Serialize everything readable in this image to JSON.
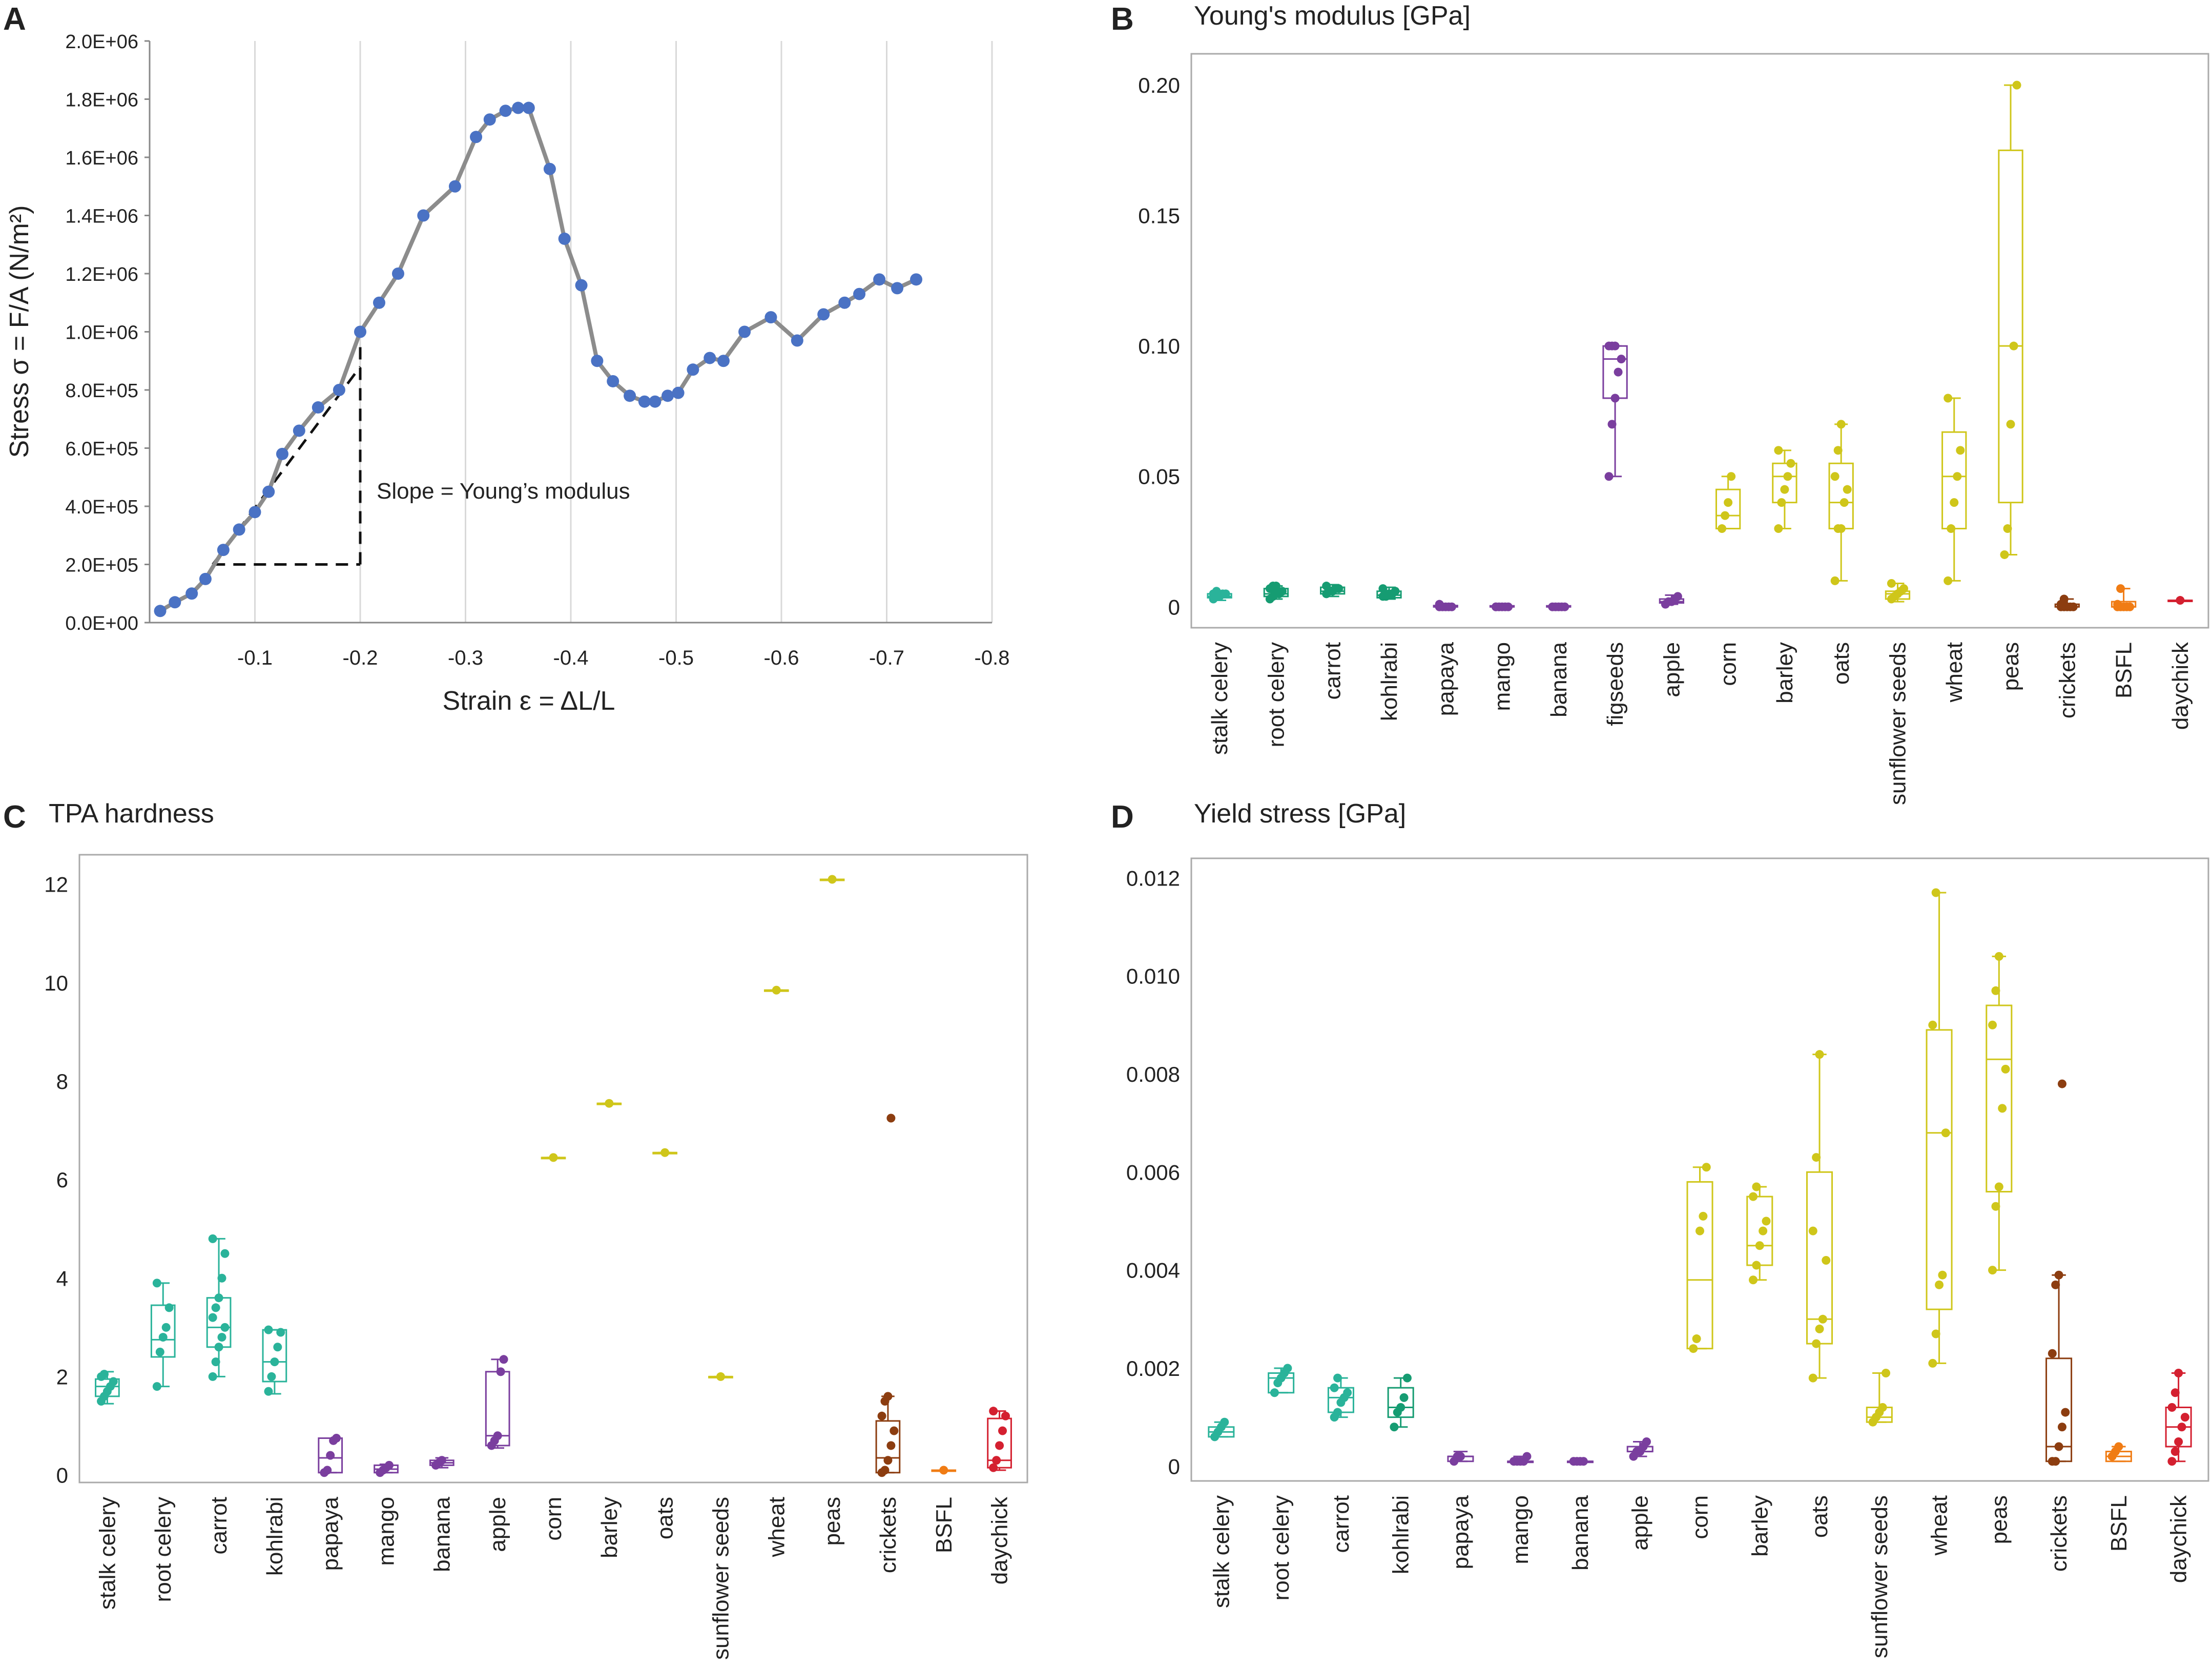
{
  "panels": {
    "A": {
      "letter": "A",
      "xlabel": "Strain ε = ΔL/L",
      "ylabel": "Stress σ = F/A (N/m²)",
      "annotation": "Slope = Young’s modulus",
      "yticks": [
        "0.0E+00",
        "2.0E+05",
        "4.0E+05",
        "6.0E+05",
        "8.0E+05",
        "1.0E+06",
        "1.2E+06",
        "1.4E+06",
        "1.6E+06",
        "1.8E+06",
        "2.0E+06"
      ],
      "xticks": [
        "-0.1",
        "-0.2",
        "-0.3",
        "-0.4",
        "-0.5",
        "-0.6",
        "-0.7",
        "-0.8"
      ]
    },
    "B": {
      "letter": "B",
      "title": "Young's modulus [GPa]",
      "yticks": [
        "0",
        "0.05",
        "0.10",
        "0.15",
        "0.20"
      ]
    },
    "C": {
      "letter": "C",
      "title": "TPA hardness",
      "yticks": [
        "0",
        "2",
        "4",
        "6",
        "8",
        "10",
        "12"
      ]
    },
    "D": {
      "letter": "D",
      "title": "Yield stress [GPa]",
      "yticks": [
        "0",
        "0.002",
        "0.004",
        "0.006",
        "0.008",
        "0.010",
        "0.012"
      ]
    }
  },
  "colors": {
    "teal": "#2ab39a",
    "green": "#169c72",
    "purple": "#7a3e9e",
    "yellow": "#cfc61a",
    "brown": "#8c3d10",
    "orange": "#f07c14",
    "red": "#d42030",
    "lineGray": "#8c8c8c",
    "markerBlue": "#4a72c4"
  },
  "chart_data": [
    {
      "panel": "A",
      "type": "line",
      "title": "",
      "xlabel": "Strain ε = ΔL/L",
      "ylabel": "Stress σ = F/A (N/m²)",
      "xlim": [
        0,
        -0.8
      ],
      "ylim": [
        0,
        2000000
      ],
      "grid": "vertical",
      "series": [
        {
          "name": "stress-strain",
          "x": [
            -0.01,
            -0.024,
            -0.04,
            -0.053,
            -0.07,
            -0.085,
            -0.1,
            -0.113,
            -0.126,
            -0.142,
            -0.16,
            -0.18,
            -0.2,
            -0.218,
            -0.236,
            -0.26,
            -0.29,
            -0.31,
            -0.323,
            -0.338,
            -0.35,
            -0.36,
            -0.38,
            -0.394,
            -0.41,
            -0.425,
            -0.44,
            -0.456,
            -0.47,
            -0.48,
            -0.492,
            -0.502,
            -0.516,
            -0.532,
            -0.545,
            -0.565,
            -0.59,
            -0.615,
            -0.64,
            -0.66,
            -0.674,
            -0.693,
            -0.71,
            -0.728
          ],
          "y": [
            40000,
            70000,
            100000,
            150000,
            250000,
            320000,
            380000,
            450000,
            580000,
            660000,
            740000,
            800000,
            1000000,
            1100000,
            1200000,
            1400000,
            1500000,
            1670000,
            1730000,
            1760000,
            1770000,
            1770000,
            1560000,
            1320000,
            1160000,
            900000,
            830000,
            780000,
            760000,
            760000,
            780000,
            790000,
            870000,
            910000,
            900000,
            1000000,
            1050000,
            970000,
            1060000,
            1100000,
            1130000,
            1180000,
            1150000,
            1180000
          ]
        }
      ],
      "annotations": [
        {
          "text": "Slope = Young’s modulus",
          "tangent_from": [
            -0.06,
            200000
          ],
          "tangent_to": [
            -0.2,
            880000
          ],
          "corner": [
            -0.2,
            200000
          ]
        }
      ]
    },
    {
      "panel": "B",
      "type": "box",
      "title": "Young's modulus [GPa]",
      "ylim": [
        -0.008,
        0.212
      ],
      "categories": [
        "stalk celery",
        "root celery",
        "carrot",
        "kohlrabi",
        "papaya",
        "mango",
        "banana",
        "figseeds",
        "apple",
        "corn",
        "barley",
        "oats",
        "sunflower seeds",
        "wheat",
        "peas",
        "crickets",
        "BSFL",
        "daychick"
      ],
      "colors": [
        "#2ab39a",
        "#169c72",
        "#169c72",
        "#169c72",
        "#7a3e9e",
        "#7a3e9e",
        "#7a3e9e",
        "#7a3e9e",
        "#7a3e9e",
        "#cfc61a",
        "#cfc61a",
        "#cfc61a",
        "#cfc61a",
        "#cfc61a",
        "#cfc61a",
        "#8c3d10",
        "#f07c14",
        "#d42030"
      ],
      "boxes": [
        {
          "min": 0.0025,
          "q1": 0.0035,
          "median": 0.004,
          "q3": 0.005,
          "max": 0.006
        },
        {
          "min": 0.003,
          "q1": 0.004,
          "median": 0.005,
          "q3": 0.007,
          "max": 0.008
        },
        {
          "min": 0.004,
          "q1": 0.005,
          "median": 0.006,
          "q3": 0.0075,
          "max": 0.0085
        },
        {
          "min": 0.003,
          "q1": 0.0035,
          "median": 0.0045,
          "q3": 0.006,
          "max": 0.0075
        },
        {
          "min": 0,
          "q1": 0,
          "median": 0,
          "q3": 0.0005,
          "max": 0.001
        },
        {
          "min": 0,
          "q1": 0,
          "median": 0,
          "q3": 0.0004,
          "max": 0.0007
        },
        {
          "min": 0,
          "q1": 0,
          "median": 0,
          "q3": 0.0004,
          "max": 0.0006
        },
        {
          "min": 0.05,
          "q1": 0.08,
          "median": 0.095,
          "q3": 0.1,
          "max": 0.1
        },
        {
          "min": 0.001,
          "q1": 0.0015,
          "median": 0.002,
          "q3": 0.003,
          "max": 0.0045
        },
        {
          "min": 0.03,
          "q1": 0.03,
          "median": 0.035,
          "q3": 0.045,
          "max": 0.05
        },
        {
          "min": 0.03,
          "q1": 0.04,
          "median": 0.05,
          "q3": 0.055,
          "max": 0.06
        },
        {
          "min": 0.01,
          "q1": 0.03,
          "median": 0.04,
          "q3": 0.055,
          "max": 0.07
        },
        {
          "min": 0.002,
          "q1": 0.003,
          "median": 0.005,
          "q3": 0.006,
          "max": 0.009
        },
        {
          "min": 0.01,
          "q1": 0.03,
          "median": 0.05,
          "q3": 0.067,
          "max": 0.08
        },
        {
          "min": 0.02,
          "q1": 0.04,
          "median": 0.1,
          "q3": 0.175,
          "max": 0.2
        },
        {
          "min": 0,
          "q1": 0,
          "median": 0,
          "q3": 0.001,
          "max": 0.003
        },
        {
          "min": 0,
          "q1": 0,
          "median": 0,
          "q3": 0.002,
          "max": 0.007
        },
        {
          "min": 0.0025,
          "q1": 0.0025,
          "median": 0.0025,
          "q3": 0.0025,
          "max": 0.0025
        }
      ],
      "points": [
        [
          0.003,
          0.004,
          0.004,
          0.005,
          0.005,
          0.005,
          0.006
        ],
        [
          0.003,
          0.004,
          0.005,
          0.005,
          0.006,
          0.007,
          0.008,
          0.008
        ],
        [
          0.005,
          0.006,
          0.006,
          0.007,
          0.007,
          0.008
        ],
        [
          0.004,
          0.004,
          0.005,
          0.005,
          0.006,
          0.007
        ],
        [
          0,
          0,
          0,
          0,
          0,
          0.001
        ],
        [
          0,
          0,
          0,
          0,
          0,
          0
        ],
        [
          0,
          0,
          0,
          0,
          0
        ],
        [
          0.05,
          0.07,
          0.08,
          0.09,
          0.095,
          0.1,
          0.1,
          0.1
        ],
        [
          0.001,
          0.002,
          0.002,
          0.003,
          0.004
        ],
        [
          0.03,
          0.035,
          0.04,
          0.05
        ],
        [
          0.03,
          0.04,
          0.045,
          0.05,
          0.055,
          0.06
        ],
        [
          0.01,
          0.03,
          0.03,
          0.04,
          0.045,
          0.05,
          0.06,
          0.07
        ],
        [
          0.003,
          0.004,
          0.005,
          0.006,
          0.007,
          0.009
        ],
        [
          0.01,
          0.03,
          0.04,
          0.05,
          0.06,
          0.08
        ],
        [
          0.02,
          0.03,
          0.07,
          0.1,
          0.2
        ],
        [
          0,
          0,
          0,
          0,
          0,
          0.001,
          0.003
        ],
        [
          0,
          0,
          0,
          0,
          0,
          0.001,
          0.007
        ],
        [
          0.0025
        ]
      ]
    },
    {
      "panel": "C",
      "type": "box",
      "title": "TPA hardness",
      "ylim": [
        -0.15,
        12.6
      ],
      "categories": [
        "stalk celery",
        "root celery",
        "carrot",
        "kohlrabi",
        "papaya",
        "mango",
        "banana",
        "apple",
        "corn",
        "barley",
        "oats",
        "sunflower seeds",
        "wheat",
        "peas",
        "crickets",
        "BSFL",
        "daychick"
      ],
      "colors": [
        "#2ab39a",
        "#2ab39a",
        "#2ab39a",
        "#2ab39a",
        "#7a3e9e",
        "#7a3e9e",
        "#7a3e9e",
        "#7a3e9e",
        "#cfc61a",
        "#cfc61a",
        "#cfc61a",
        "#cfc61a",
        "#cfc61a",
        "#cfc61a",
        "#8c3d10",
        "#f07c14",
        "#d42030"
      ],
      "boxes": [
        {
          "min": 1.45,
          "q1": 1.6,
          "median": 1.8,
          "q3": 1.95,
          "max": 2.1
        },
        {
          "min": 1.8,
          "q1": 2.4,
          "median": 2.75,
          "q3": 3.45,
          "max": 3.9
        },
        {
          "min": 2.0,
          "q1": 2.6,
          "median": 3.0,
          "q3": 3.6,
          "max": 4.8
        },
        {
          "min": 1.65,
          "q1": 1.9,
          "median": 2.3,
          "q3": 2.95,
          "max": 2.95
        },
        {
          "min": 0.05,
          "q1": 0.05,
          "median": 0.35,
          "q3": 0.75,
          "max": 0.75
        },
        {
          "min": 0.05,
          "q1": 0.05,
          "median": 0.12,
          "q3": 0.2,
          "max": 0.22
        },
        {
          "min": 0.15,
          "q1": 0.2,
          "median": 0.25,
          "q3": 0.3,
          "max": 0.35
        },
        {
          "min": 0.55,
          "q1": 0.6,
          "median": 0.8,
          "q3": 2.1,
          "max": 2.35
        },
        {
          "min": 6.45,
          "q1": 6.45,
          "median": 6.45,
          "q3": 6.45,
          "max": 6.45
        },
        {
          "min": 7.55,
          "q1": 7.55,
          "median": 7.55,
          "q3": 7.55,
          "max": 7.55
        },
        {
          "min": 6.55,
          "q1": 6.55,
          "median": 6.55,
          "q3": 6.55,
          "max": 6.55
        },
        {
          "min": 2.0,
          "q1": 2.0,
          "median": 2.0,
          "q3": 2.0,
          "max": 2.0
        },
        {
          "min": 9.85,
          "q1": 9.85,
          "median": 9.85,
          "q3": 9.85,
          "max": 9.85
        },
        {
          "min": 12.1,
          "q1": 12.1,
          "median": 12.1,
          "q3": 12.1,
          "max": 12.1
        },
        {
          "min": 0.05,
          "q1": 0.05,
          "median": 0.35,
          "q3": 1.1,
          "max": 1.6
        },
        {
          "min": 0.1,
          "q1": 0.1,
          "median": 0.1,
          "q3": 0.1,
          "max": 0.1
        },
        {
          "min": 0.1,
          "q1": 0.15,
          "median": 0.3,
          "q3": 1.15,
          "max": 1.3
        }
      ],
      "points": [
        [
          1.5,
          1.6,
          1.7,
          1.8,
          1.9,
          2.0,
          2.05
        ],
        [
          1.8,
          2.5,
          2.8,
          3.0,
          3.4,
          3.9
        ],
        [
          2.0,
          2.3,
          2.6,
          2.8,
          3.0,
          3.2,
          3.4,
          3.6,
          4.0,
          4.5,
          4.8
        ],
        [
          1.7,
          2.0,
          2.3,
          2.6,
          2.9,
          2.95
        ],
        [
          0.05,
          0.1,
          0.4,
          0.7,
          0.75
        ],
        [
          0.05,
          0.1,
          0.15,
          0.2
        ],
        [
          0.2,
          0.25,
          0.3
        ],
        [
          0.6,
          0.7,
          0.8,
          2.1,
          2.35
        ],
        [
          6.45
        ],
        [
          7.55
        ],
        [
          6.55
        ],
        [
          2.0
        ],
        [
          9.85
        ],
        [
          12.1
        ],
        [
          0.05,
          0.1,
          0.3,
          0.6,
          0.9,
          1.2,
          1.5,
          1.6,
          7.25
        ],
        [
          0.1
        ],
        [
          0.15,
          0.3,
          0.6,
          0.9,
          1.2,
          1.3
        ]
      ]
    },
    {
      "panel": "D",
      "type": "box",
      "title": "Yield stress [GPa]",
      "ylim": [
        -0.0003,
        0.0124
      ],
      "categories": [
        "stalk celery",
        "root celery",
        "carrot",
        "kohlrabi",
        "papaya",
        "mango",
        "banana",
        "apple",
        "corn",
        "barley",
        "oats",
        "sunflower seeds",
        "wheat",
        "peas",
        "crickets",
        "BSFL",
        "daychick"
      ],
      "colors": [
        "#2ab39a",
        "#2ab39a",
        "#2ab39a",
        "#169c72",
        "#7a3e9e",
        "#7a3e9e",
        "#7a3e9e",
        "#7a3e9e",
        "#cfc61a",
        "#cfc61a",
        "#cfc61a",
        "#cfc61a",
        "#cfc61a",
        "#cfc61a",
        "#8c3d10",
        "#f07c14",
        "#d42030"
      ],
      "boxes": [
        {
          "min": 0.0006,
          "q1": 0.0006,
          "median": 0.0007,
          "q3": 0.0008,
          "max": 0.0009
        },
        {
          "min": 0.0015,
          "q1": 0.0015,
          "median": 0.0018,
          "q3": 0.0019,
          "max": 0.002
        },
        {
          "min": 0.001,
          "q1": 0.0011,
          "median": 0.0014,
          "q3": 0.0016,
          "max": 0.0018
        },
        {
          "min": 0.0008,
          "q1": 0.001,
          "median": 0.0012,
          "q3": 0.0016,
          "max": 0.0018
        },
        {
          "min": 0.0001,
          "q1": 0.0001,
          "median": 0.0002,
          "q3": 0.0002,
          "max": 0.0003
        },
        {
          "min": 0.0001,
          "q1": 0.0001,
          "median": 0.0001,
          "q3": 0.0001,
          "max": 0.0002
        },
        {
          "min": 0.0001,
          "q1": 0.0001,
          "median": 0.0001,
          "q3": 0.0001,
          "max": 0.0001
        },
        {
          "min": 0.0002,
          "q1": 0.0003,
          "median": 0.0003,
          "q3": 0.0004,
          "max": 0.0005
        },
        {
          "min": 0.0024,
          "q1": 0.0024,
          "median": 0.0038,
          "q3": 0.0058,
          "max": 0.0061
        },
        {
          "min": 0.0038,
          "q1": 0.0041,
          "median": 0.0045,
          "q3": 0.0055,
          "max": 0.0057
        },
        {
          "min": 0.0018,
          "q1": 0.0025,
          "median": 0.003,
          "q3": 0.006,
          "max": 0.0084
        },
        {
          "min": 0.0009,
          "q1": 0.0009,
          "median": 0.001,
          "q3": 0.0012,
          "max": 0.0019
        },
        {
          "min": 0.0021,
          "q1": 0.0032,
          "median": 0.0068,
          "q3": 0.0089,
          "max": 0.0117
        },
        {
          "min": 0.004,
          "q1": 0.0056,
          "median": 0.0083,
          "q3": 0.0094,
          "max": 0.0104
        },
        {
          "min": 0.0001,
          "q1": 0.0001,
          "median": 0.0004,
          "q3": 0.0022,
          "max": 0.0039
        },
        {
          "min": 0.0001,
          "q1": 0.0001,
          "median": 0.0002,
          "q3": 0.0003,
          "max": 0.0004
        },
        {
          "min": 0.0001,
          "q1": 0.0004,
          "median": 0.0008,
          "q3": 0.0012,
          "max": 0.0019
        }
      ],
      "points": [
        [
          0.0006,
          0.0007,
          0.0008,
          0.0009
        ],
        [
          0.0015,
          0.0017,
          0.0018,
          0.0019,
          0.002
        ],
        [
          0.001,
          0.0011,
          0.0013,
          0.0014,
          0.0015,
          0.0016,
          0.0018
        ],
        [
          0.0008,
          0.0011,
          0.0012,
          0.0014,
          0.0018
        ],
        [
          0.0001,
          0.0002,
          0.0002
        ],
        [
          0.0001,
          0.0001,
          0.0001,
          0.0001,
          0.0002
        ],
        [
          0.0001,
          0.0001,
          0.0001,
          0.0001
        ],
        [
          0.0002,
          0.0003,
          0.0003,
          0.0004,
          0.0005
        ],
        [
          0.0024,
          0.0026,
          0.0048,
          0.0051,
          0.0061
        ],
        [
          0.0038,
          0.0041,
          0.0045,
          0.0048,
          0.005,
          0.0055,
          0.0057
        ],
        [
          0.0018,
          0.0025,
          0.0028,
          0.003,
          0.0042,
          0.0048,
          0.0063,
          0.0084
        ],
        [
          0.0009,
          0.001,
          0.0011,
          0.0012,
          0.0019
        ],
        [
          0.0021,
          0.0027,
          0.0037,
          0.0039,
          0.0068,
          0.009,
          0.0117
        ],
        [
          0.004,
          0.0053,
          0.0057,
          0.0073,
          0.0081,
          0.009,
          0.0097,
          0.0104
        ],
        [
          0.0001,
          0.0001,
          0.0004,
          0.0008,
          0.0011,
          0.0023,
          0.0037,
          0.0039,
          0.0078
        ],
        [
          0.0002,
          0.0003,
          0.0004
        ],
        [
          0.0001,
          0.0003,
          0.0005,
          0.0008,
          0.001,
          0.0012,
          0.0015,
          0.0019
        ]
      ]
    }
  ]
}
